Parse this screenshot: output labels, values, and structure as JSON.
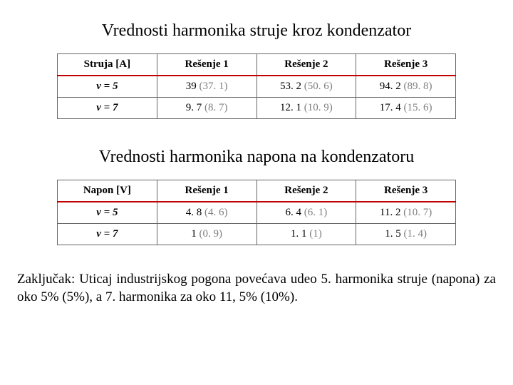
{
  "title1": "Vrednosti harmonika struje kroz kondenzator",
  "title2": "Vrednosti harmonika napona na kondenzatoru",
  "table1": {
    "columns": [
      "Struja [A]",
      "Rešenje 1",
      "Rešenje 2",
      "Rešenje 3"
    ],
    "rows": [
      {
        "label": "v = 5",
        "cells": [
          {
            "main": "39",
            "secondary": " (37. 1)"
          },
          {
            "main": "53. 2",
            "secondary": " (50. 6)"
          },
          {
            "main": "94. 2",
            "secondary": " (89. 8)"
          }
        ]
      },
      {
        "label": "v = 7",
        "cells": [
          {
            "main": "9. 7",
            "secondary": " (8. 7)"
          },
          {
            "main": "12. 1",
            "secondary": " (10. 9)"
          },
          {
            "main": "17. 4",
            "secondary": " (15. 6)"
          }
        ]
      }
    ]
  },
  "table2": {
    "columns": [
      "Napon [V]",
      "Rešenje 1",
      "Rešenje 2",
      "Rešenje 3"
    ],
    "rows": [
      {
        "label": "v = 5",
        "cells": [
          {
            "main": "4. 8",
            "secondary": " (4. 6)"
          },
          {
            "main": "6. 4",
            "secondary": " (6. 1)"
          },
          {
            "main": "11. 2",
            "secondary": " (10. 7)"
          }
        ]
      },
      {
        "label": "v = 7",
        "cells": [
          {
            "main": "1",
            "secondary": " (0. 9)"
          },
          {
            "main": "1. 1",
            "secondary": " (1)"
          },
          {
            "main": "1. 5",
            "secondary": " (1. 4)"
          }
        ]
      }
    ]
  },
  "conclusion": "Zaključak: Uticaj industrijskog pogona povećava udeo 5. harmonika struje (napona) za oko 5% (5%), a 7. harmonika za oko 11, 5% (10%).",
  "colors": {
    "accent_red": "#c00000",
    "secondary_text": "#7f7f7f",
    "border": "#666666",
    "background": "#ffffff",
    "text": "#000000"
  }
}
